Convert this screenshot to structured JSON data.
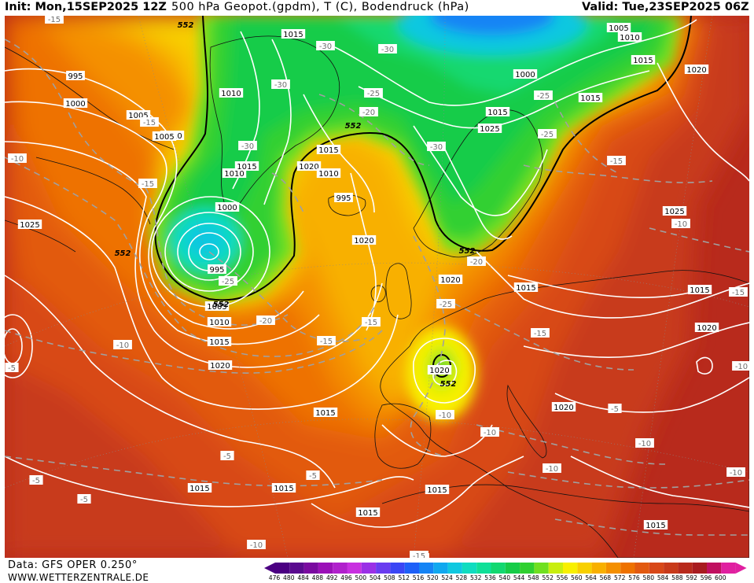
{
  "header": {
    "init": "Init: Mon,15SEP2025 12Z",
    "title": "500 hPa Geopot.(gpdm), T (C), Bodendruck (hPa)",
    "valid": "Valid: Tue,23SEP2025 06Z"
  },
  "footer": {
    "source": "Data: GFS OPER 0.250°",
    "site": "WWW.WETTERZENTRALE.DE"
  },
  "legend": {
    "values": [
      "476",
      "480",
      "484",
      "488",
      "492",
      "496",
      "500",
      "504",
      "508",
      "512",
      "516",
      "520",
      "524",
      "528",
      "532",
      "536",
      "540",
      "544",
      "548",
      "552",
      "556",
      "560",
      "564",
      "568",
      "572",
      "576",
      "580",
      "584",
      "588",
      "592",
      "596",
      "600"
    ],
    "colors": [
      "#4b0082",
      "#5a0a8f",
      "#7a0aa0",
      "#9b10b8",
      "#b020cc",
      "#c830e0",
      "#9a30e6",
      "#6a3cf0",
      "#3a46f5",
      "#1e60f8",
      "#1584f5",
      "#10a8ef",
      "#10c8e0",
      "#10dcc0",
      "#10e098",
      "#12d870",
      "#16cc48",
      "#30d030",
      "#70e020",
      "#c8ee10",
      "#f8f000",
      "#f8d000",
      "#f8b000",
      "#f49000",
      "#ee7200",
      "#e25a10",
      "#d84818",
      "#c83a1a",
      "#b82a1c",
      "#a81c20",
      "#c01060",
      "#e020a0"
    ],
    "left_arrow_color": "#4b0082",
    "right_arrow_color": "#e020a0"
  },
  "map": {
    "geopotential_contours": [
      {
        "label": "552",
        "positions": "552 gpdm line around Greenland / Scandinavia trough"
      }
    ],
    "pressure_labels": [
      "1015",
      "995",
      "1000",
      "1005",
      "1010",
      "1005",
      "1010",
      "1010",
      "1015",
      "1015",
      "1020",
      "1000",
      "995",
      "1005",
      "1010",
      "1015",
      "1020",
      "1025",
      "1020",
      "1015",
      "1010",
      "995",
      "1000",
      "1005",
      "1010",
      "1015",
      "1020",
      "1015",
      "1015",
      "1025",
      "1020",
      "1015",
      "1020",
      "1015",
      "1025",
      "1020",
      "1020",
      "1015",
      "1015",
      "1015",
      "1015",
      "1015"
    ],
    "temperature_labels": [
      "-15",
      "-30",
      "-30",
      "-30",
      "-25",
      "-20",
      "-30",
      "-25",
      "-30",
      "-25",
      "-15",
      "-15",
      "-10",
      "-15",
      "-25",
      "-20",
      "-15",
      "-15",
      "-10",
      "-25",
      "-20",
      "-15",
      "-10",
      "-15",
      "-10",
      "-10",
      "-10",
      "-10",
      "-10",
      "-5",
      "-5",
      "-5",
      "-5",
      "-5",
      "-10",
      "-10",
      "-15",
      "-10",
      "-5"
    ],
    "geopot_labels": [
      "552",
      "552",
      "552",
      "552",
      "552",
      "552"
    ]
  }
}
